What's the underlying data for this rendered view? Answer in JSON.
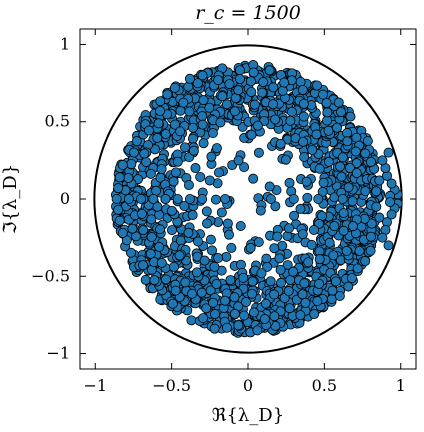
{
  "chart_data": {
    "type": "scatter",
    "title": "r_c = 1500",
    "xlabel": "ℜ{λ_D}",
    "ylabel": "ℑ{λ_D}",
    "xlim": [
      -1.1,
      1.1
    ],
    "ylim": [
      -1.1,
      1.1
    ],
    "xticks": [
      -1,
      -0.5,
      0,
      0.5,
      1
    ],
    "yticks": [
      -1,
      -0.5,
      0,
      0.5,
      1
    ],
    "xtick_labels": [
      "−1",
      "−0.5",
      "0",
      "0.5",
      "1"
    ],
    "ytick_labels": [
      "−1",
      "−0.5",
      "0",
      "0.5",
      "1"
    ],
    "grid": false,
    "unit_circle": {
      "center": [
        0,
        0
      ],
      "radius": 1
    },
    "marker_color": "#1f77b4",
    "marker_edge": "#000000",
    "cloud": {
      "center": [
        0,
        0
      ],
      "radius": 0.87,
      "count": 2000,
      "hole_density": 0.12
    },
    "series": [
      {
        "values": [
          [
            0.97,
            0.0
          ],
          [
            0.98,
            0.03
          ],
          [
            0.98,
            -0.03
          ],
          [
            0.96,
            0.06
          ],
          [
            0.96,
            -0.06
          ],
          [
            0.94,
            0.1
          ],
          [
            0.94,
            -0.1
          ],
          [
            0.93,
            0.02
          ],
          [
            0.93,
            -0.02
          ],
          [
            0.91,
            0.15
          ],
          [
            0.91,
            -0.15
          ],
          [
            0.9,
            0.2
          ],
          [
            0.9,
            -0.2
          ],
          [
            0.88,
            0.25
          ],
          [
            0.88,
            -0.25
          ],
          [
            0.92,
            0.3
          ],
          [
            0.92,
            -0.3
          ],
          [
            0.86,
            0.12
          ],
          [
            0.86,
            -0.12
          ],
          [
            0.84,
            0.05
          ],
          [
            0.84,
            -0.05
          ],
          [
            -0.86,
            0.0
          ],
          [
            -0.85,
            0.07
          ],
          [
            -0.85,
            -0.07
          ],
          [
            -0.84,
            0.14
          ],
          [
            -0.84,
            -0.14
          ],
          [
            -0.82,
            0.22
          ],
          [
            -0.82,
            -0.22
          ],
          [
            -0.78,
            0.0
          ],
          [
            -0.7,
            0.0
          ],
          [
            -0.62,
            0.0
          ],
          [
            -0.54,
            0.0
          ],
          [
            -0.46,
            0.0
          ],
          [
            -0.38,
            0.0
          ],
          [
            -0.3,
            0.0
          ],
          [
            -0.15,
            0.0
          ],
          [
            0.15,
            0.0
          ],
          [
            0.3,
            0.0
          ],
          [
            0.46,
            0.0
          ],
          [
            0.62,
            0.0
          ]
        ]
      }
    ]
  }
}
